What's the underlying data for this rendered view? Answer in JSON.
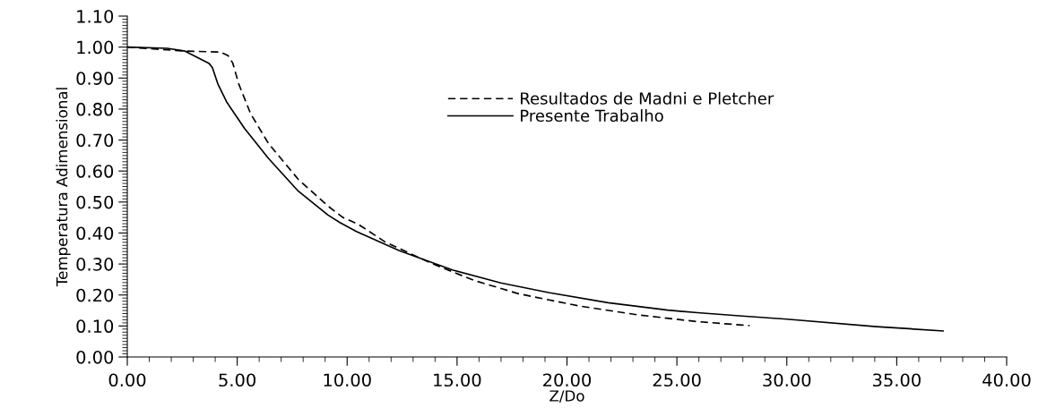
{
  "chart_data": {
    "type": "line",
    "xlabel": "Z/Do",
    "ylabel": "Temperatura Adimensional",
    "xlim": [
      0,
      40
    ],
    "ylim": [
      0,
      1.1
    ],
    "xticks": [
      {
        "value": 0,
        "label": "0.00"
      },
      {
        "value": 5,
        "label": "5.00"
      },
      {
        "value": 10,
        "label": "10.00"
      },
      {
        "value": 15,
        "label": "15.00"
      },
      {
        "value": 20,
        "label": "20.00"
      },
      {
        "value": 25,
        "label": "25.00"
      },
      {
        "value": 30,
        "label": "30.00"
      },
      {
        "value": 35,
        "label": "35.00"
      },
      {
        "value": 40,
        "label": "40.00"
      }
    ],
    "yticks": [
      {
        "value": 0,
        "label": "0.00"
      },
      {
        "value": 0.1,
        "label": "0.10"
      },
      {
        "value": 0.2,
        "label": "0.20"
      },
      {
        "value": 0.3,
        "label": "0.30"
      },
      {
        "value": 0.4,
        "label": "0.40"
      },
      {
        "value": 0.5,
        "label": "0.50"
      },
      {
        "value": 0.6,
        "label": "0.60"
      },
      {
        "value": 0.7,
        "label": "0.70"
      },
      {
        "value": 0.8,
        "label": "0.80"
      },
      {
        "value": 0.9,
        "label": "0.90"
      },
      {
        "value": 1.0,
        "label": "1.00"
      },
      {
        "value": 1.1,
        "label": "1.10"
      }
    ],
    "grid": false,
    "legend": "top",
    "marker": "none",
    "series": [
      {
        "name": "Resultados de Madni e Pletcher",
        "color": "#000000",
        "line_style": "dashed",
        "x": [
          0,
          2.63,
          4.25,
          4.59,
          4.8,
          5.07,
          5.61,
          6.42,
          7.78,
          9.13,
          9.81,
          10.49,
          11.71,
          13.74,
          15.77,
          17.8,
          20.52,
          23.22,
          25.93,
          27.97,
          28.31
        ],
        "values": [
          1.0,
          0.987,
          0.984,
          0.972,
          0.948,
          0.881,
          0.785,
          0.689,
          0.573,
          0.487,
          0.45,
          0.429,
          0.372,
          0.305,
          0.247,
          0.204,
          0.165,
          0.136,
          0.114,
          0.103,
          0.101
        ]
      },
      {
        "name": "Presente Trabalho",
        "color": "#000000",
        "line_style": "solid",
        "x": [
          0,
          1.82,
          2.63,
          3.71,
          3.87,
          4.12,
          4.52,
          5.34,
          6.42,
          7.78,
          9.13,
          9.67,
          10.42,
          12.38,
          14.82,
          16.99,
          19.16,
          21.87,
          24.58,
          25.93,
          27.97,
          30.0,
          34.07,
          37.11
        ],
        "values": [
          1.0,
          0.996,
          0.987,
          0.948,
          0.934,
          0.881,
          0.823,
          0.737,
          0.641,
          0.535,
          0.458,
          0.434,
          0.405,
          0.343,
          0.28,
          0.239,
          0.208,
          0.175,
          0.151,
          0.143,
          0.132,
          0.122,
          0.098,
          0.084
        ]
      }
    ]
  }
}
